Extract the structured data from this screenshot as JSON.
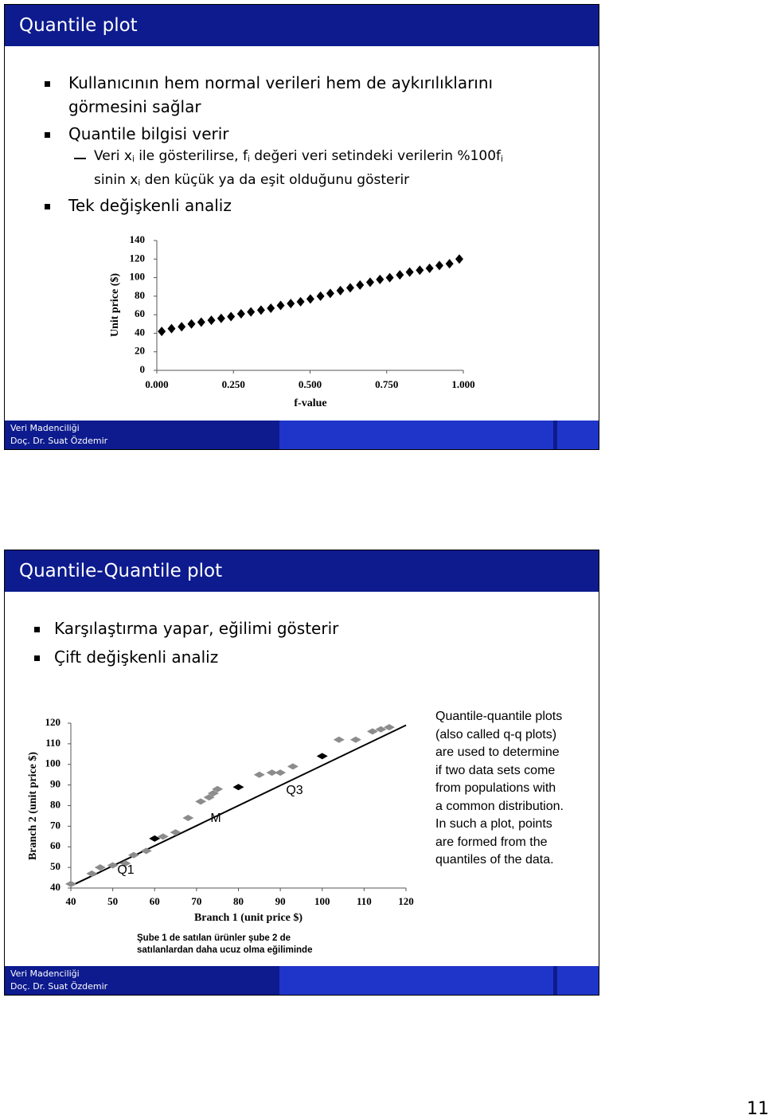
{
  "slides": [
    {
      "title": "Quantile plot",
      "items": [
        [
          [
            "Kullanıcının hem normal verileri hem de aykırılıklarını"
          ],
          [
            "görmesini sağlar"
          ]
        ],
        [
          [
            "Quantile bilgisi verir"
          ]
        ],
        [
          [
            "Veri x",
            "i",
            " ile gösterilirse, f",
            "i",
            " değeri veri setindeki verilerin %100f",
            "i"
          ],
          [
            "sinin x",
            "i",
            " den küçük ya da eşit olduğunu gösterir"
          ]
        ],
        [
          [
            "Tek değişkenli analiz"
          ]
        ]
      ],
      "footer": [
        "Veri Madenciliği",
        "Doç. Dr. Suat Özdemir"
      ]
    },
    {
      "title": "Quantile-Quantile plot",
      "items": [
        [
          [
            "Karşılaştırma yapar, eğilimi gösterir"
          ]
        ],
        [
          [
            "Çift değişkenli analiz"
          ]
        ]
      ],
      "description": [
        "Quantile-quantile plots",
        "(also called q-q plots)",
        "are used to determine",
        "if two data sets come",
        "from populations with",
        "a common distribution.",
        "In such a plot, points",
        "are formed from the",
        "quantiles of the data."
      ],
      "caption": [
        "Şube 1 de satılan  ürünler şube 2 de",
        "satılanlardan daha ucuz olma eğiliminde"
      ],
      "footer": [
        "Veri Madenciliği",
        "Doç. Dr. Suat Özdemir"
      ]
    }
  ],
  "page_number": "11",
  "chart_data": [
    {
      "type": "scatter",
      "xlabel": "f-value",
      "ylabel": "Unit price ($)",
      "color": "#000000",
      "x": [
        0.016,
        0.048,
        0.081,
        0.113,
        0.145,
        0.178,
        0.21,
        0.242,
        0.275,
        0.307,
        0.34,
        0.372,
        0.404,
        0.437,
        0.469,
        0.501,
        0.534,
        0.566,
        0.599,
        0.631,
        0.663,
        0.696,
        0.728,
        0.76,
        0.793,
        0.825,
        0.858,
        0.89,
        0.922,
        0.955,
        0.987
      ],
      "values": [
        42,
        45,
        47,
        50,
        52,
        54,
        56,
        58,
        61,
        63,
        65,
        67,
        70,
        72,
        74,
        77,
        80,
        83,
        86,
        89,
        92,
        95,
        98,
        100,
        103,
        106,
        108,
        110,
        113,
        115,
        120
      ],
      "xlim": [
        0,
        1
      ],
      "ylim": [
        0,
        140
      ],
      "xticks": [
        {
          "value": 0,
          "label": "0.000"
        },
        {
          "value": 0.25,
          "label": "0.250"
        },
        {
          "value": 0.5,
          "label": "0.500"
        },
        {
          "value": 0.75,
          "label": "0.750"
        },
        {
          "value": 1,
          "label": "1.000"
        }
      ],
      "yticks": [
        0,
        20,
        40,
        60,
        80,
        100,
        120,
        140
      ]
    },
    {
      "type": "scatter",
      "xlabel": "Branch 1 (unit price $)",
      "ylabel": "Branch 2 (unit price $)",
      "series": [
        {
          "color": "#8c8c8c",
          "x": [
            40,
            45,
            47,
            50,
            53,
            55,
            58,
            62,
            65,
            68,
            71,
            73,
            74,
            75,
            85,
            88,
            90,
            93,
            104,
            108,
            112,
            114,
            116
          ],
          "values": [
            42,
            47,
            50,
            51,
            52,
            56,
            58,
            65,
            67,
            74,
            82,
            84,
            86,
            88,
            95,
            96,
            96,
            99,
            112,
            112,
            116,
            117,
            118
          ]
        },
        {
          "color": "#000000",
          "x": [
            60,
            80,
            100
          ],
          "values": [
            64,
            89,
            104
          ]
        }
      ],
      "line": {
        "x": [
          40,
          120
        ],
        "values": [
          41,
          119
        ],
        "color": "#000000"
      },
      "annotations": [
        "Q1",
        "M",
        "Q3"
      ],
      "xlim": [
        40,
        120
      ],
      "ylim": [
        40,
        120
      ],
      "xticks": [
        40,
        50,
        60,
        70,
        80,
        90,
        100,
        110,
        120
      ],
      "yticks": [
        40,
        50,
        60,
        70,
        80,
        90,
        100,
        110,
        120
      ]
    }
  ]
}
